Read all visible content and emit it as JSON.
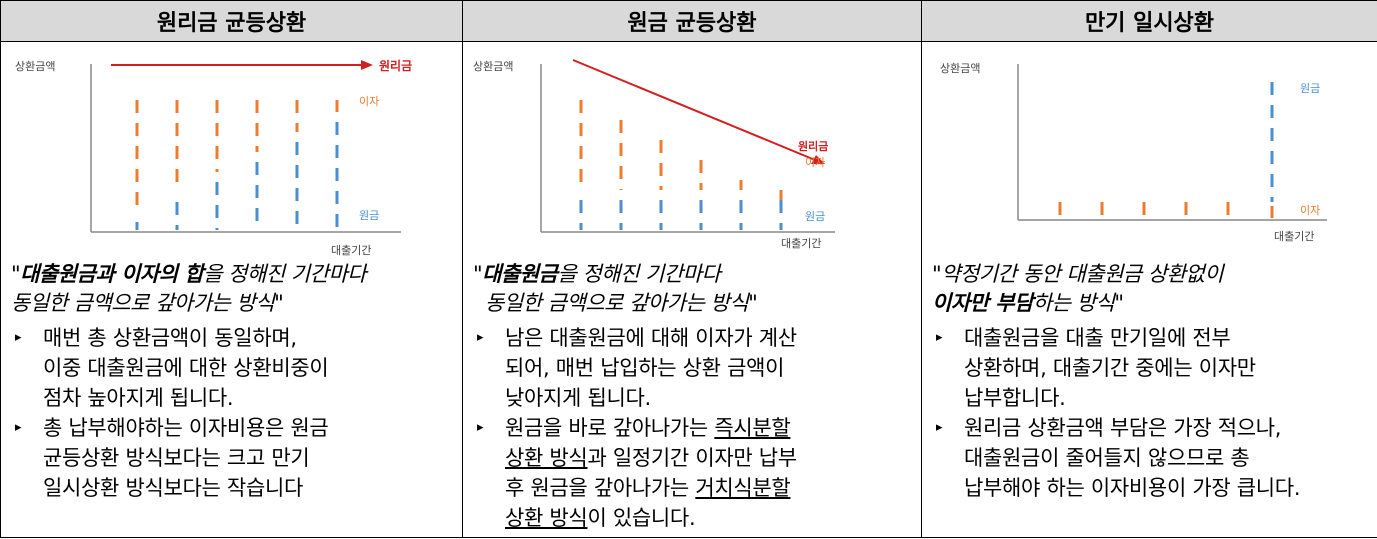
{
  "headers": [
    "원리금 균등상환",
    "원금 균등상환",
    "만기 일시상환"
  ],
  "colors": {
    "principal": "#4a8fd0",
    "interest": "#ee7c2e",
    "arrow": "#d22020",
    "header_bg": "#d9d9d9"
  },
  "col1": {
    "chart": {
      "ylabel": "상환금액",
      "xlabel": "대출기간",
      "arrow_label": "원리금",
      "interest_label": "이자",
      "principal_label": "원금"
    },
    "quote": {
      "bold": "대출원금과 이자의 합",
      "rest1": "을 정해진 기간마다",
      "line2": "동일한 금액으로 갚아가는 방식\""
    },
    "bullets": [
      {
        "lines": [
          "매번 총 상환금액이 동일하며,",
          "이중 대출원금에 대한 상환비중이",
          "점차 높아지게 됩니다."
        ]
      },
      {
        "lines": [
          "총 납부해야하는 이자비용은 원금",
          "균등상환 방식보다는 크고 만기",
          "일시상환 방식보다는 작습니다"
        ]
      }
    ]
  },
  "col2": {
    "chart": {
      "ylabel": "상환금액",
      "xlabel": "대출기간",
      "arrow_label": "원리금",
      "interest_label": "이자",
      "principal_label": "원금"
    },
    "quote": {
      "bold": "대출원금",
      "rest1": "을 정해진 기간마다",
      "line2": "동일한 금액으로 갚아가는 방식\""
    },
    "bullet1": {
      "lines": [
        "남은 대출원금에 대해 이자가 계산",
        "되어, 매번 납입하는 상환 금액이",
        "낮아지게 됩니다."
      ]
    },
    "bullet2": {
      "l1a": "원금을 바로 갚아나가는 ",
      "l1u": "즉시분할",
      "l2u": "상환 방식",
      "l2b": "과 일정기간 이자만 납부",
      "l3a": "후 원금을 갚아나가는 ",
      "l3u": "거치식분할",
      "l4u": "상환 방식",
      "l4b": "이 있습니다."
    }
  },
  "col3": {
    "chart": {
      "ylabel": "상환금액",
      "xlabel": "대출기간",
      "interest_label": "이자",
      "principal_label": "원금"
    },
    "quote": {
      "line1": "\"약정기간 동안 대출원금 상환없이",
      "bold": "이자만 부담",
      "rest2": "하는 방식\""
    },
    "bullets": [
      {
        "lines": [
          "대출원금을 대출 만기일에 전부",
          "상환하며, 대출기간 중에는 이자만",
          "납부합니다."
        ]
      },
      {
        "lines": [
          "원리금 상환금액 부담은 가장 적으나,",
          "대출원금이 줄어들지 않으므로 총",
          "납부해야 하는 이자비용이 가장 큽니다."
        ]
      }
    ]
  }
}
